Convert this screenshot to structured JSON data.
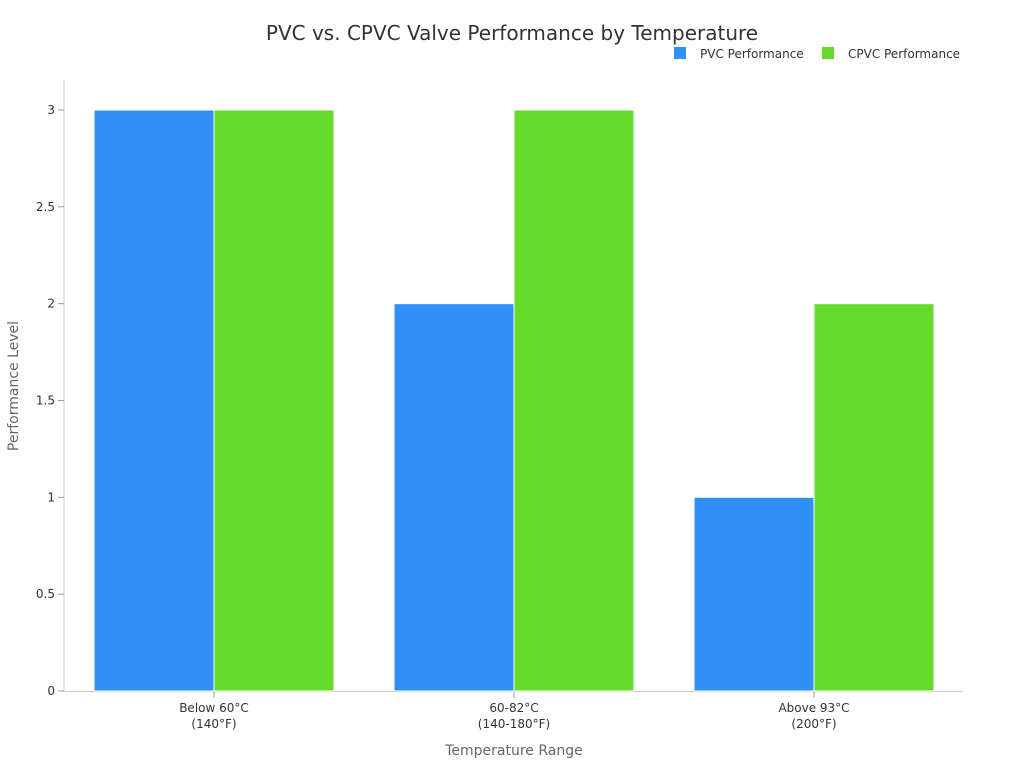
{
  "chart_data": {
    "type": "bar",
    "title": "PVC vs. CPVC Valve Performance by Temperature",
    "xlabel": "Temperature Range",
    "ylabel": "Performance Level",
    "categories": [
      [
        "Below 60°C",
        "(140°F)"
      ],
      [
        "60-82°C",
        "(140-180°F)"
      ],
      [
        "Above 93°C",
        "(200°F)"
      ]
    ],
    "series": [
      {
        "name": "PVC Performance",
        "values": [
          3,
          2,
          1
        ],
        "color": "#3090f8"
      },
      {
        "name": "CPVC Performance",
        "values": [
          3,
          3,
          2
        ],
        "color": "#66da28"
      }
    ],
    "ylim": [
      0,
      3
    ],
    "yticks": [
      "0",
      "0.5",
      "1",
      "1.5",
      "2",
      "2.5",
      "3"
    ],
    "grid": false,
    "legend": "top-right"
  }
}
